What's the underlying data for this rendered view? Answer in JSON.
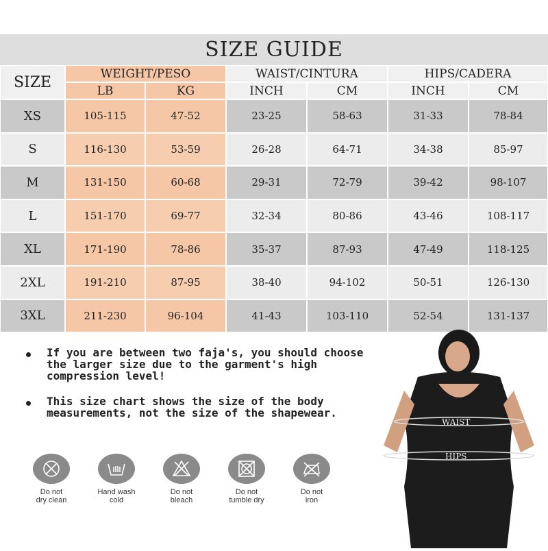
{
  "title": "SIZE GUIDE",
  "headers": {
    "size": "SIZE",
    "weight": "WEIGHT/PESO",
    "waist": "WAIST/CINTURA",
    "hips": "HIPS/CADERA",
    "lb": "LB",
    "kg": "KG",
    "waist_inch": "INCH",
    "waist_cm": "CM",
    "hips_inch": "INCH",
    "hips_cm": "CM"
  },
  "rows": [
    {
      "size": "XS",
      "lb": "105-115",
      "kg": "47-52",
      "waist_inch": "23-25",
      "waist_cm": "58-63",
      "hips_inch": "31-33",
      "hips_cm": "78-84"
    },
    {
      "size": "S",
      "lb": "116-130",
      "kg": "53-59",
      "waist_inch": "26-28",
      "waist_cm": "64-71",
      "hips_inch": "34-38",
      "hips_cm": "85-97"
    },
    {
      "size": "M",
      "lb": "131-150",
      "kg": "60-68",
      "waist_inch": "29-31",
      "waist_cm": "72-79",
      "hips_inch": "39-42",
      "hips_cm": "98-107"
    },
    {
      "size": "L",
      "lb": "151-170",
      "kg": "69-77",
      "waist_inch": "32-34",
      "waist_cm": "80-86",
      "hips_inch": "43-46",
      "hips_cm": "108-117"
    },
    {
      "size": "XL",
      "lb": "171-190",
      "kg": "78-86",
      "waist_inch": "35-37",
      "waist_cm": "87-93",
      "hips_inch": "47-49",
      "hips_cm": "118-125"
    },
    {
      "size": "2XL",
      "lb": "191-210",
      "kg": "87-95",
      "waist_inch": "38-40",
      "waist_cm": "94-102",
      "hips_inch": "50-51",
      "hips_cm": "126-130"
    },
    {
      "size": "3XL",
      "lb": "211-230",
      "kg": "96-104",
      "waist_inch": "41-43",
      "waist_cm": "103-110",
      "hips_inch": "52-54",
      "hips_cm": "131-137"
    }
  ],
  "notes": [
    "If you are between two faja's, you should choose the larger size due to the garment's high compression level!",
    "This size chart shows the size of the body measurements, not the size of the shapewear."
  ],
  "model_labels": {
    "waist": "WAIST",
    "hips": "HIPS"
  },
  "care": [
    {
      "icon": "no-dry-clean-icon",
      "label1": "Do not",
      "label2": "dry clean"
    },
    {
      "icon": "hand-wash-icon",
      "label1": "Hand wash",
      "label2": "cold"
    },
    {
      "icon": "no-bleach-icon",
      "label1": "Do not",
      "label2": "bleach"
    },
    {
      "icon": "no-tumble-dry-icon",
      "label1": "Do not",
      "label2": "tumble dry"
    },
    {
      "icon": "no-iron-icon",
      "label1": "Do not",
      "label2": "iron"
    }
  ],
  "colors": {
    "weight": "#f6c7a6",
    "dark_row": "#c9c9c9",
    "light_row": "#ececec",
    "title_band": "#dedede"
  }
}
